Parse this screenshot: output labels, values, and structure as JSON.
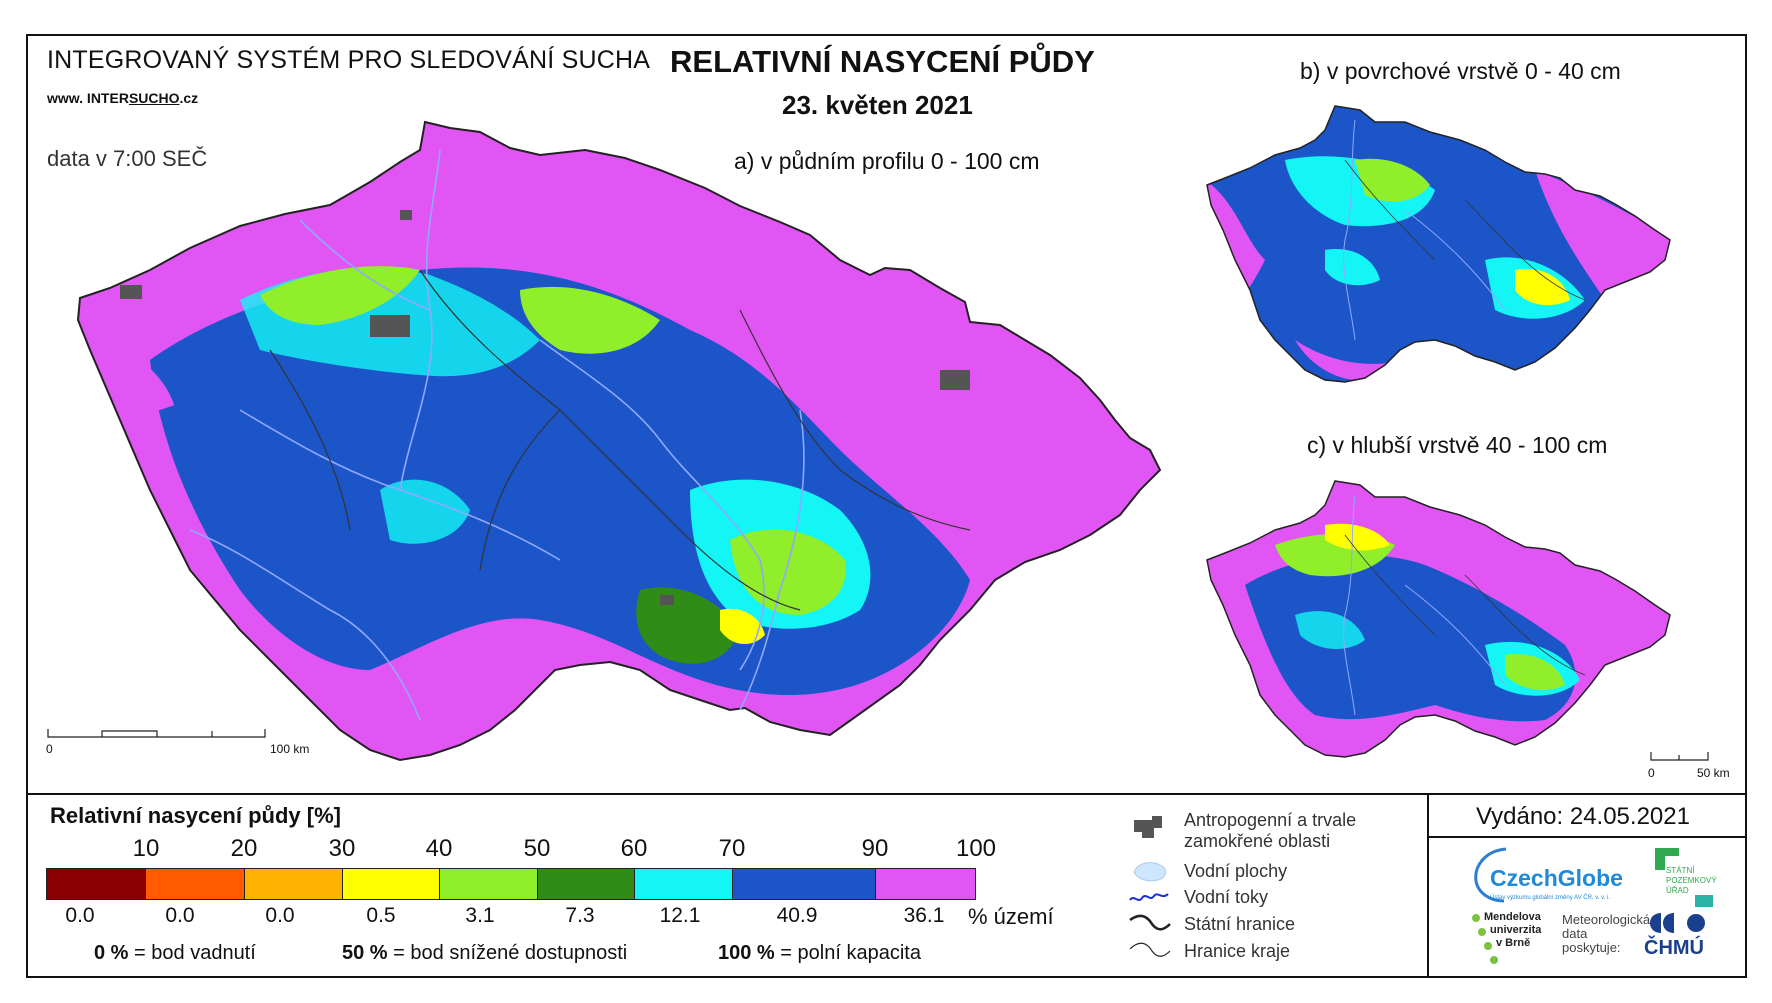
{
  "header": {
    "system_name": "INTEGROVANÝ SYSTÉM PRO SLEDOVÁNÍ SUCHA",
    "website_prefix": "www. INTER",
    "website_u": "SUCHO",
    "website_suffix": ".cz",
    "data_time": "data v 7:00 SEČ",
    "title": "RELATIVNÍ NASYCENÍ PŮDY",
    "date": "23. květen 2021"
  },
  "maps": {
    "a_label": "a) v půdním profilu 0 - 100 cm",
    "b_label": "b) v povrchové vrstvě 0 - 40 cm",
    "c_label": "c) v hlubší vrstvě 40 - 100 cm",
    "scale_main": {
      "start": "0",
      "end": "100 km"
    },
    "scale_small": {
      "start": "0",
      "end": "50 km"
    }
  },
  "legend": {
    "title": "Relativní nasycení půdy [%]",
    "breaks": [
      "10",
      "20",
      "30",
      "40",
      "50",
      "60",
      "70",
      "90",
      "100"
    ],
    "classes": [
      {
        "color": "#8b0000",
        "pct": "0.0"
      },
      {
        "color": "#ff5a00",
        "pct": "0.0"
      },
      {
        "color": "#ffb300",
        "pct": "0.0"
      },
      {
        "color": "#ffff00",
        "pct": "0.5"
      },
      {
        "color": "#90ee2a",
        "pct": "3.1"
      },
      {
        "color": "#2f8c16",
        "pct": "7.3"
      },
      {
        "color": "#14f5f5",
        "pct": "12.1"
      },
      {
        "color": "#1b55c8",
        "pct": "40.9"
      },
      {
        "color": "#e255f5",
        "pct": "36.1"
      }
    ],
    "pct_unit": "% území",
    "notes": [
      {
        "value": "0 %",
        "text": "= bod vadnutí"
      },
      {
        "value": "50 %",
        "text": "= bod snížené dostupnosti"
      },
      {
        "value": "100 %",
        "text": "= polní kapacita"
      }
    ]
  },
  "reference_legend": {
    "anthropogenic_line1": "Antropogenní a trvale",
    "anthropogenic_line2": "zamokřené oblasti",
    "water_bodies": "Vodní plochy",
    "rivers": "Vodní toky",
    "state_border": "Státní hranice",
    "region_border": "Hranice kraje"
  },
  "footer": {
    "issued": "Vydáno: 24.05.2021",
    "czechglobe": "CzechGlobe",
    "czechglobe_sub": "Ústav výzkumu globální změny AV ČR, v. v. i.",
    "spu_line1": "STÁTNÍ",
    "spu_line2": "POZEMKOVÝ",
    "spu_line3": "ÚŘAD",
    "mendel_line1": "Mendelova",
    "mendel_line2": "univerzita",
    "mendel_line3": "v Brně",
    "met_line1": "Meteorologická",
    "met_line2": "data",
    "met_line3": "poskytuje:",
    "chmu": "ČHMÚ"
  },
  "colors": {
    "magenta": "#e255f5",
    "blue": "#1b55c8",
    "cyan": "#14f5f5",
    "green": "#2f8c16",
    "lightgreen": "#90ee2a",
    "yellow": "#ffff00",
    "river": "#8fa8ff",
    "urban": "#555555"
  }
}
